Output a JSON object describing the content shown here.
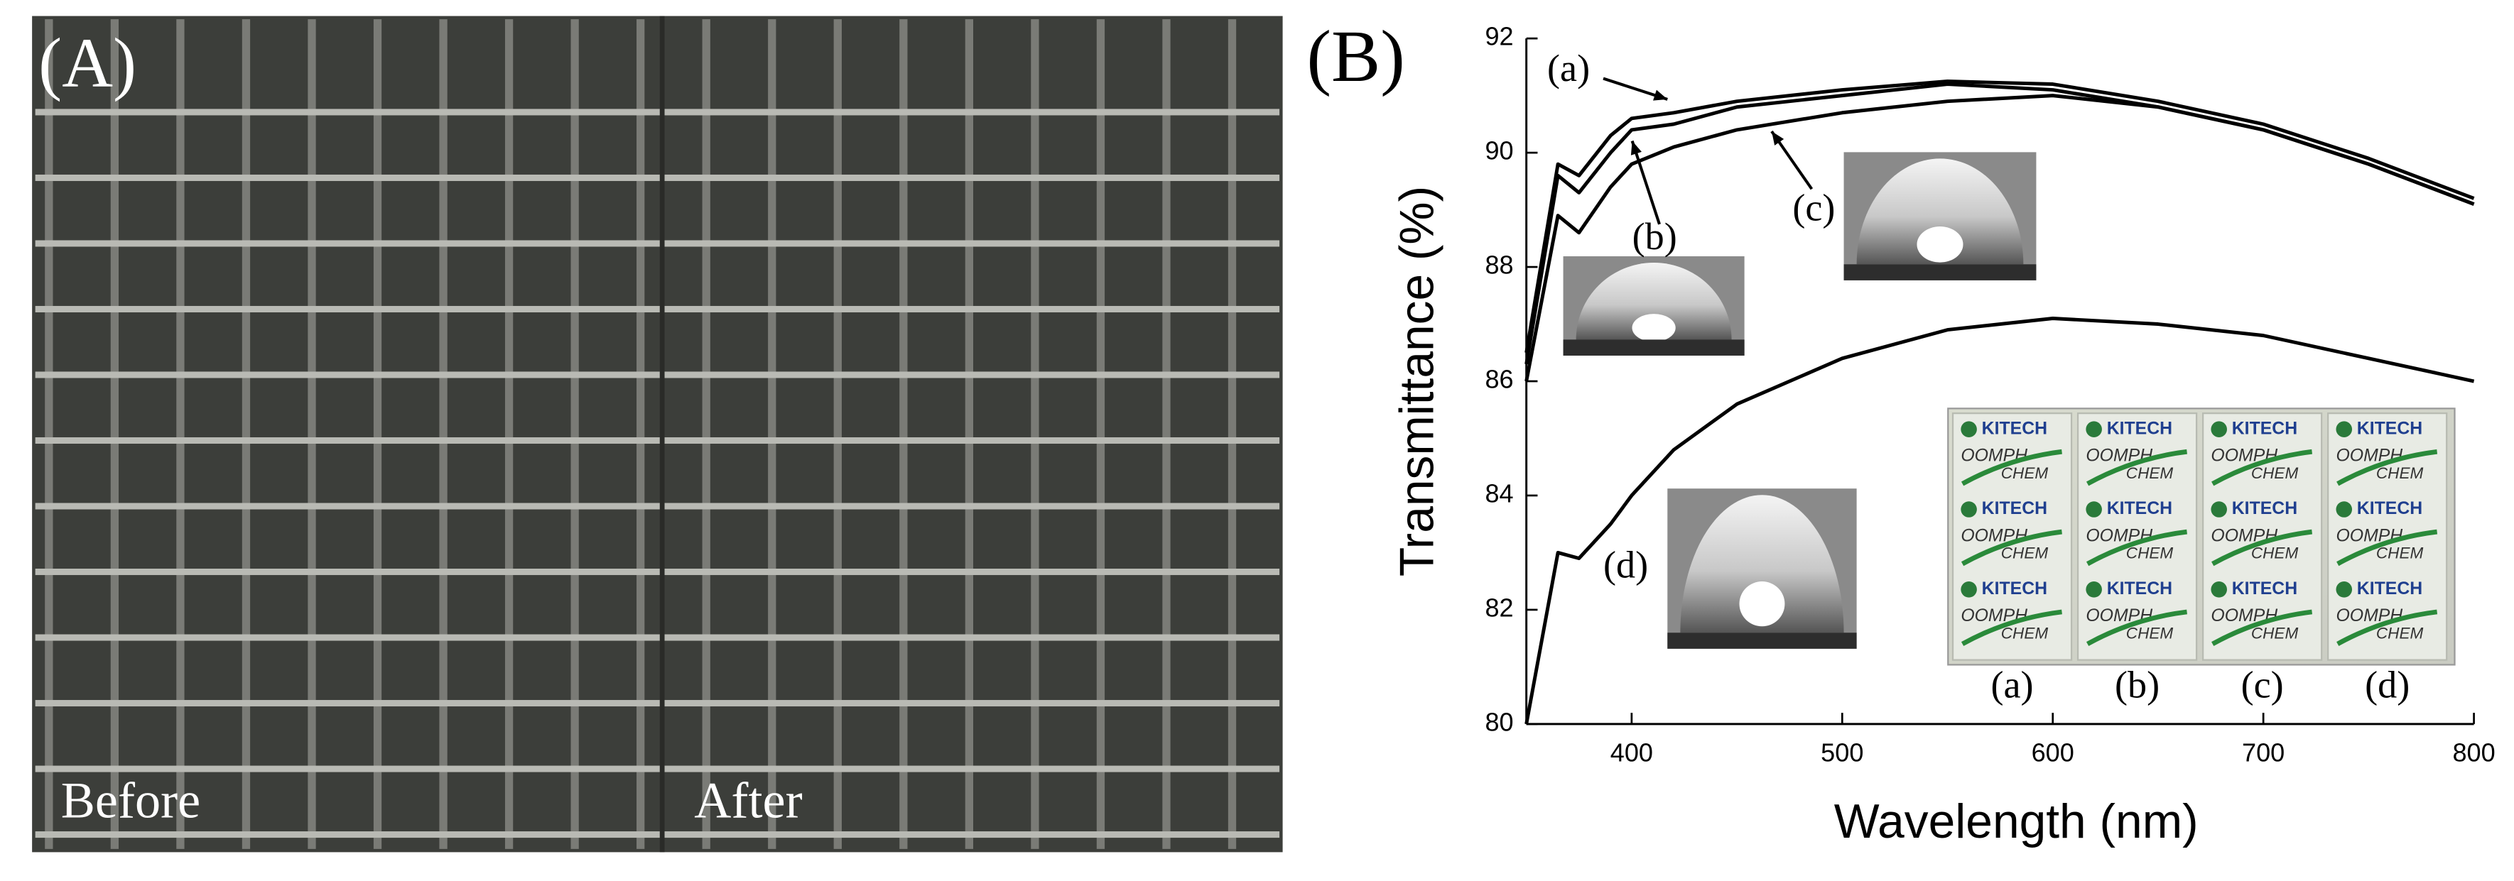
{
  "panel_a": {
    "label": "(A)",
    "before": "Before",
    "after": "After"
  },
  "chart_data": {
    "type": "line",
    "panel_label": "(B)",
    "xlabel": "Wavelength (nm)",
    "ylabel": "Transmittance (%)",
    "xlim": [
      350,
      800
    ],
    "ylim": [
      80,
      92
    ],
    "xticks": [
      400,
      500,
      600,
      700,
      800
    ],
    "yticks": [
      80,
      82,
      84,
      86,
      88,
      90,
      92
    ],
    "x": [
      350,
      365,
      375,
      390,
      400,
      420,
      450,
      500,
      550,
      600,
      650,
      700,
      750,
      800
    ],
    "series": [
      {
        "name": "(a)",
        "color": "#000000",
        "values": [
          86.5,
          89.8,
          89.6,
          90.3,
          90.6,
          90.7,
          90.9,
          91.1,
          91.25,
          91.2,
          90.9,
          90.5,
          89.9,
          89.2
        ]
      },
      {
        "name": "(b)",
        "color": "#000000",
        "values": [
          86.3,
          89.6,
          89.3,
          90.0,
          90.4,
          90.5,
          90.8,
          91.0,
          91.2,
          91.1,
          90.8,
          90.4,
          89.8,
          89.1
        ]
      },
      {
        "name": "(c)",
        "color": "#000000",
        "values": [
          86.0,
          88.9,
          88.6,
          89.4,
          89.8,
          90.1,
          90.4,
          90.7,
          90.9,
          91.0,
          90.8,
          90.4,
          89.8,
          89.1
        ]
      },
      {
        "name": "(d)",
        "color": "#000000",
        "values": [
          80.0,
          83.0,
          82.9,
          83.5,
          84.0,
          84.8,
          85.6,
          86.4,
          86.9,
          87.1,
          87.0,
          86.8,
          86.4,
          86.0
        ]
      }
    ],
    "inset_labels": [
      "(a)",
      "(b)",
      "(c)",
      "(d)"
    ],
    "inset_logo_texts": [
      "KITECH",
      "OOMPH",
      "CHEM"
    ]
  }
}
